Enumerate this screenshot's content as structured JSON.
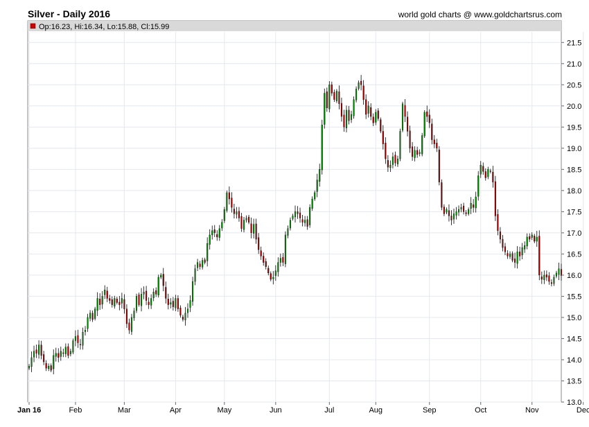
{
  "chart_data": {
    "type": "candlestick",
    "title": "Silver - Daily 2016",
    "credit": "world gold charts @ www.goldchartsrus.com",
    "legend": {
      "symbol_color": "#cc0000",
      "text": "Op:16.23, Hi:16.34, Lo:15.88, Cl:15.99",
      "open": 16.23,
      "high": 16.34,
      "low": 15.88,
      "close": 15.99
    },
    "up_color": "#008800",
    "down_color": "#990000",
    "ylim": [
      13.0,
      21.75
    ],
    "y_ticks": [
      13.0,
      13.5,
      14.0,
      14.5,
      15.0,
      15.5,
      16.0,
      16.5,
      17.0,
      17.5,
      18.0,
      18.5,
      19.0,
      19.5,
      20.0,
      20.5,
      21.0,
      21.5
    ],
    "x_ticks": [
      "Jan 16",
      "Feb",
      "Mar",
      "Apr",
      "May",
      "Jun",
      "Jul",
      "Aug",
      "Sep",
      "Oct",
      "Nov",
      "Dec"
    ],
    "grid": true,
    "closes": [
      13.85,
      14.05,
      14.2,
      14.15,
      14.35,
      14.1,
      13.95,
      13.8,
      13.85,
      13.75,
      14.1,
      14.15,
      14.05,
      14.2,
      14.15,
      14.3,
      14.1,
      14.2,
      14.45,
      14.55,
      14.4,
      14.35,
      14.65,
      14.7,
      15.0,
      15.1,
      14.95,
      15.2,
      15.45,
      15.3,
      15.5,
      15.65,
      15.45,
      15.4,
      15.3,
      15.45,
      15.35,
      15.3,
      15.45,
      15.2,
      14.85,
      14.7,
      15.0,
      15.15,
      15.5,
      15.3,
      15.55,
      15.6,
      15.4,
      15.3,
      15.45,
      15.6,
      15.55,
      15.95,
      16.0,
      15.75,
      15.45,
      15.3,
      15.35,
      15.25,
      15.45,
      15.2,
      15.05,
      14.95,
      15.1,
      15.2,
      15.4,
      15.85,
      16.15,
      16.3,
      16.2,
      16.35,
      16.3,
      16.75,
      16.95,
      17.05,
      17.0,
      16.9,
      17.1,
      17.25,
      17.55,
      17.95,
      17.8,
      17.6,
      17.45,
      17.5,
      17.35,
      17.1,
      17.3,
      17.35,
      17.25,
      17.0,
      17.2,
      16.85,
      16.6,
      16.45,
      16.3,
      16.2,
      16.05,
      15.9,
      15.95,
      16.1,
      16.3,
      16.4,
      16.3,
      16.95,
      17.1,
      17.3,
      17.4,
      17.5,
      17.45,
      17.35,
      17.25,
      17.3,
      17.15,
      17.6,
      17.8,
      17.95,
      18.25,
      18.5,
      19.55,
      20.3,
      19.95,
      20.5,
      20.3,
      20.15,
      20.35,
      20.05,
      19.75,
      19.5,
      19.9,
      19.65,
      19.8,
      20.15,
      20.4,
      20.55,
      20.5,
      20.15,
      19.8,
      20.0,
      19.75,
      19.6,
      19.85,
      19.7,
      19.4,
      19.1,
      18.75,
      18.55,
      18.6,
      18.8,
      18.65,
      18.75,
      19.4,
      20.05,
      19.75,
      19.4,
      19.0,
      18.8,
      18.95,
      18.85,
      18.9,
      19.3,
      19.85,
      19.75,
      19.6,
      19.2,
      19.1,
      19.0,
      18.2,
      17.6,
      17.45,
      17.55,
      17.4,
      17.3,
      17.45,
      17.5,
      17.55,
      17.6,
      17.5,
      17.45,
      17.55,
      17.7,
      17.6,
      17.85,
      18.35,
      18.6,
      18.45,
      18.3,
      18.5,
      18.45,
      18.2,
      17.4,
      17.05,
      16.85,
      16.65,
      16.55,
      16.45,
      16.5,
      16.35,
      16.3,
      16.55,
      16.45,
      16.65,
      16.7,
      16.9,
      16.85,
      16.95,
      16.8,
      16.9,
      16.0,
      15.9,
      16.0,
      15.95,
      15.85,
      15.8,
      15.95,
      16.05,
      16.15,
      15.99
    ]
  }
}
